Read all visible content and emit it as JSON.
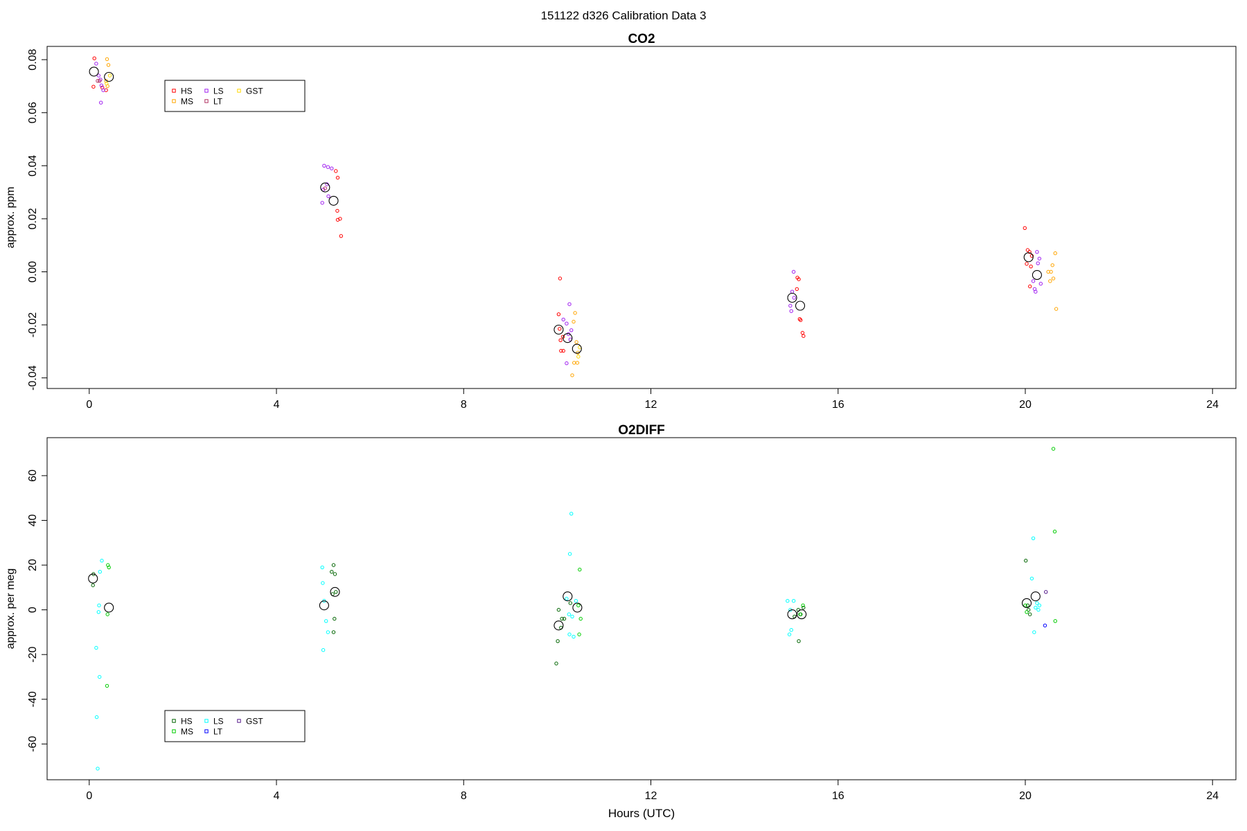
{
  "page": {
    "title": "151122   d326   Calibration Data 3"
  },
  "legend_symbol_colors": {
    "co2": {
      "HS": "#ff0000",
      "MS": "#ffa500",
      "LS": "#a020f0",
      "LT": "#b03060",
      "GST": "#ffd700"
    },
    "o2": {
      "HS": "#006400",
      "MS": "#00cc00",
      "LS": "#00ffff",
      "LT": "#0000ff",
      "GST": "#551a8b"
    }
  },
  "chart_data": [
    {
      "type": "scatter",
      "title": "CO2",
      "xlabel": "",
      "ylabel": "approx. ppm",
      "xlim": [
        -0.9,
        24.5
      ],
      "ylim": [
        -0.044,
        0.085
      ],
      "xticks": [
        0,
        4,
        8,
        12,
        16,
        20,
        24
      ],
      "yticks": [
        -0.04,
        -0.02,
        0.0,
        0.02,
        0.04,
        0.06,
        0.08
      ],
      "ytick_labels": [
        "-0.04",
        "-0.02",
        "0.00",
        "0.02",
        "0.04",
        "0.06",
        "0.08"
      ],
      "legend": {
        "placement": "top-left",
        "entries": [
          {
            "label": "HS",
            "color": "#ff0000"
          },
          {
            "label": "MS",
            "color": "#ffa500"
          },
          {
            "label": "LS",
            "color": "#a020f0"
          },
          {
            "label": "LT",
            "color": "#b03060"
          },
          {
            "label": "GST",
            "color": "#ffd700"
          }
        ]
      },
      "series": [
        {
          "color": "#ff0000",
          "points": [
            [
              0.11,
              0.0805
            ],
            [
              0.09,
              0.0698
            ],
            [
              0.28,
              0.0695
            ],
            [
              0.36,
              0.0685
            ],
            [
              5.27,
              0.038
            ],
            [
              5.31,
              0.0355
            ],
            [
              5.3,
              0.023
            ],
            [
              5.36,
              0.02
            ],
            [
              5.31,
              0.0196
            ],
            [
              5.38,
              0.0135
            ],
            [
              10.06,
              -0.0025
            ],
            [
              10.03,
              -0.016
            ],
            [
              10.05,
              -0.0215
            ],
            [
              10.12,
              -0.0245
            ],
            [
              10.07,
              -0.0258
            ],
            [
              10.13,
              -0.0298
            ],
            [
              10.08,
              -0.0298
            ],
            [
              15.13,
              -0.0022
            ],
            [
              15.16,
              -0.0028
            ],
            [
              15.12,
              -0.0065
            ],
            [
              15.18,
              -0.0178
            ],
            [
              15.2,
              -0.0182
            ],
            [
              15.24,
              -0.023
            ],
            [
              15.26,
              -0.0242
            ],
            [
              19.99,
              0.0165
            ],
            [
              20.05,
              0.0082
            ],
            [
              20.09,
              0.0075
            ],
            [
              20.14,
              0.006
            ],
            [
              20.03,
              0.003
            ],
            [
              20.12,
              0.002
            ],
            [
              20.1,
              -0.0055
            ]
          ]
        },
        {
          "color": "#ffa500",
          "points": [
            [
              0.38,
              0.0802
            ],
            [
              0.41,
              0.078
            ],
            [
              0.36,
              0.072
            ],
            [
              0.39,
              0.07
            ],
            [
              10.38,
              -0.0155
            ],
            [
              10.35,
              -0.0188
            ],
            [
              10.41,
              -0.0265
            ],
            [
              10.44,
              -0.0305
            ],
            [
              10.36,
              -0.0343
            ],
            [
              10.43,
              -0.0343
            ],
            [
              10.32,
              -0.039
            ],
            [
              20.64,
              0.007
            ],
            [
              20.58,
              0.0025
            ],
            [
              20.49,
              0.0
            ],
            [
              20.55,
              0.0
            ],
            [
              20.6,
              -0.0025
            ],
            [
              20.53,
              -0.0035
            ],
            [
              20.66,
              -0.014
            ]
          ]
        },
        {
          "color": "#a020f0",
          "points": [
            [
              0.15,
              0.0785
            ],
            [
              0.2,
              0.074
            ],
            [
              0.24,
              0.0725
            ],
            [
              0.26,
              0.0703
            ],
            [
              0.3,
              0.0685
            ],
            [
              0.25,
              0.0638
            ],
            [
              5.02,
              0.04
            ],
            [
              5.1,
              0.0395
            ],
            [
              5.18,
              0.039
            ],
            [
              5.08,
              0.033
            ],
            [
              5.0,
              0.031
            ],
            [
              5.11,
              0.0285
            ],
            [
              4.98,
              0.026
            ],
            [
              10.13,
              -0.018
            ],
            [
              10.2,
              -0.0195
            ],
            [
              10.26,
              -0.0122
            ],
            [
              10.3,
              -0.022
            ],
            [
              10.24,
              -0.0235
            ],
            [
              10.28,
              -0.0255
            ],
            [
              10.2,
              -0.0345
            ],
            [
              15.05,
              0.0
            ],
            [
              15.02,
              -0.0075
            ],
            [
              15.06,
              -0.0098
            ],
            [
              14.98,
              -0.0128
            ],
            [
              15.0,
              -0.0148
            ],
            [
              20.25,
              0.0075
            ],
            [
              20.3,
              0.005
            ],
            [
              20.27,
              0.0032
            ],
            [
              20.17,
              -0.0035
            ],
            [
              20.33,
              -0.0045
            ],
            [
              20.2,
              -0.0065
            ],
            [
              20.22,
              -0.0075
            ]
          ]
        },
        {
          "color": "#b03060",
          "points": [
            [
              0.18,
              0.072
            ],
            [
              0.22,
              0.072
            ],
            [
              5.04,
              0.0315
            ]
          ]
        },
        {
          "color": "#ffd700",
          "points": [
            [
              0.44,
              0.074
            ],
            [
              0.37,
              0.071
            ],
            [
              10.48,
              -0.0285
            ],
            [
              10.45,
              -0.032
            ]
          ]
        },
        {
          "color": "#000000",
          "type": "mean",
          "points": [
            [
              0.1,
              0.0755
            ],
            [
              0.42,
              0.0735
            ],
            [
              5.04,
              0.0318
            ],
            [
              5.22,
              0.0268
            ],
            [
              10.03,
              -0.0218
            ],
            [
              10.22,
              -0.025
            ],
            [
              10.42,
              -0.029
            ],
            [
              15.02,
              -0.0098
            ],
            [
              15.19,
              -0.0128
            ],
            [
              20.07,
              0.0055
            ],
            [
              20.25,
              -0.0012
            ]
          ]
        }
      ]
    },
    {
      "type": "scatter",
      "title": "O2DIFF",
      "xlabel": "Hours (UTC)",
      "ylabel": "approx. per meg",
      "xlim": [
        -0.9,
        24.5
      ],
      "ylim": [
        -76,
        77
      ],
      "xticks": [
        0,
        4,
        8,
        12,
        16,
        20,
        24
      ],
      "yticks": [
        -60,
        -40,
        -20,
        0,
        20,
        40,
        60
      ],
      "ytick_labels": [
        "-60",
        "-40",
        "-20",
        "0",
        "20",
        "40",
        "60"
      ],
      "legend": {
        "placement": "bottom-left",
        "entries": [
          {
            "label": "HS",
            "color": "#006400"
          },
          {
            "label": "MS",
            "color": "#00cc00"
          },
          {
            "label": "LS",
            "color": "#00ffff"
          },
          {
            "label": "LT",
            "color": "#0000ff"
          },
          {
            "label": "GST",
            "color": "#551a8b"
          }
        ]
      },
      "series": [
        {
          "color": "#006400",
          "points": [
            [
              0.09,
              16
            ],
            [
              0.08,
              11
            ],
            [
              5.22,
              20
            ],
            [
              5.18,
              17
            ],
            [
              5.25,
              16
            ],
            [
              5.27,
              8
            ],
            [
              5.2,
              7
            ],
            [
              5.24,
              -4
            ],
            [
              5.22,
              -10
            ],
            [
              10.28,
              3
            ],
            [
              10.03,
              0
            ],
            [
              10.1,
              -4
            ],
            [
              10.15,
              -4
            ],
            [
              10.08,
              -8
            ],
            [
              10.01,
              -14
            ],
            [
              9.98,
              -24
            ],
            [
              15.15,
              0
            ],
            [
              15.26,
              1
            ],
            [
              15.2,
              -2
            ],
            [
              15.07,
              -3
            ],
            [
              15.16,
              -14
            ],
            [
              20.01,
              22
            ],
            [
              20.05,
              2
            ],
            [
              20.07,
              0
            ],
            [
              20.1,
              -2
            ]
          ]
        },
        {
          "color": "#00cc00",
          "points": [
            [
              0.4,
              20
            ],
            [
              0.42,
              19
            ],
            [
              0.39,
              -2
            ],
            [
              0.38,
              -34
            ],
            [
              10.48,
              18
            ],
            [
              10.45,
              2
            ],
            [
              10.5,
              -4
            ],
            [
              10.47,
              -11
            ],
            [
              15.25,
              2
            ],
            [
              15.19,
              -2
            ],
            [
              20.6,
              72
            ],
            [
              20.63,
              35
            ],
            [
              20.64,
              -5
            ],
            [
              20.0,
              2
            ],
            [
              20.03,
              -1
            ]
          ]
        },
        {
          "color": "#00ffff",
          "points": [
            [
              0.27,
              22
            ],
            [
              0.23,
              17
            ],
            [
              0.21,
              2
            ],
            [
              0.2,
              -1
            ],
            [
              0.15,
              -17
            ],
            [
              0.22,
              -30
            ],
            [
              0.16,
              -48
            ],
            [
              0.18,
              -71
            ],
            [
              4.98,
              19
            ],
            [
              4.99,
              12
            ],
            [
              5.02,
              4
            ],
            [
              5.06,
              -5
            ],
            [
              5.1,
              -10
            ],
            [
              5.0,
              -18
            ],
            [
              10.3,
              43
            ],
            [
              10.27,
              25
            ],
            [
              10.2,
              5
            ],
            [
              10.4,
              4
            ],
            [
              10.25,
              -2
            ],
            [
              10.32,
              -3
            ],
            [
              10.26,
              -11
            ],
            [
              10.35,
              -12
            ],
            [
              14.92,
              4
            ],
            [
              15.05,
              4
            ],
            [
              14.98,
              0
            ],
            [
              15.0,
              -9
            ],
            [
              14.96,
              -11
            ],
            [
              20.17,
              32
            ],
            [
              20.14,
              14
            ],
            [
              20.25,
              3
            ],
            [
              20.3,
              2
            ],
            [
              20.22,
              1
            ],
            [
              20.28,
              0
            ],
            [
              20.19,
              -10
            ]
          ]
        },
        {
          "color": "#0000ff",
          "points": [
            [
              20.42,
              -7
            ]
          ]
        },
        {
          "color": "#551a8b",
          "points": [
            [
              20.44,
              8
            ]
          ]
        },
        {
          "color": "#000000",
          "type": "mean",
          "points": [
            [
              0.08,
              14
            ],
            [
              0.42,
              1
            ],
            [
              5.02,
              2
            ],
            [
              5.25,
              8
            ],
            [
              10.03,
              -7
            ],
            [
              10.22,
              6
            ],
            [
              10.43,
              1
            ],
            [
              15.02,
              -2
            ],
            [
              15.22,
              -2
            ],
            [
              20.03,
              3
            ],
            [
              20.22,
              6
            ]
          ]
        }
      ]
    }
  ]
}
